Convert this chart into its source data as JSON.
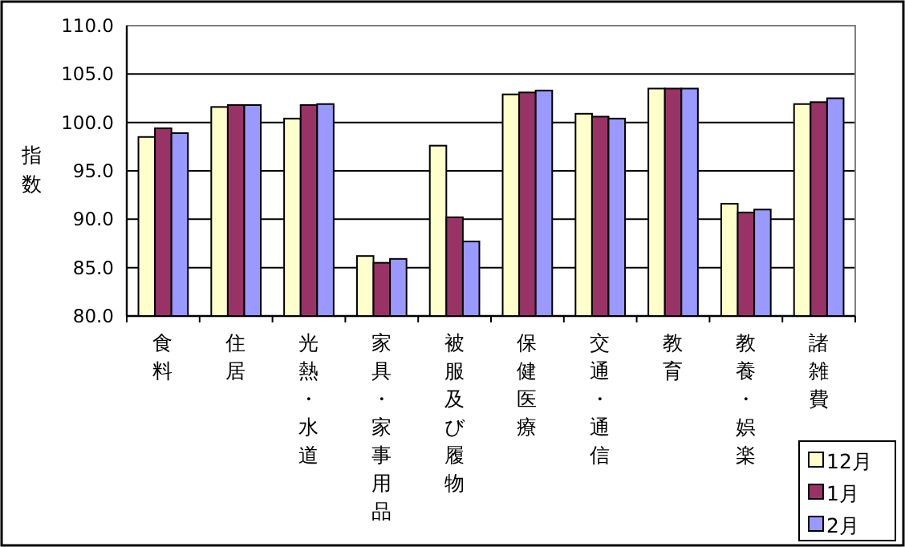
{
  "chart_data": {
    "type": "bar",
    "ylabel": "指数",
    "categories": [
      "食料",
      "住居",
      "光熱・水道",
      "家具・家事用品",
      "被服及び履物",
      "保健医療",
      "交通・通信",
      "教育",
      "教養・娯楽",
      "諸雑費"
    ],
    "series": [
      {
        "name": "12月",
        "color": "#ffffcc",
        "values": [
          98.5,
          101.6,
          100.4,
          86.2,
          97.6,
          102.9,
          100.9,
          103.5,
          91.6,
          101.9
        ]
      },
      {
        "name": "1月",
        "color": "#993366",
        "values": [
          99.4,
          101.8,
          101.8,
          85.5,
          90.2,
          103.1,
          100.6,
          103.5,
          90.7,
          102.1
        ]
      },
      {
        "name": "2月",
        "color": "#9999ff",
        "values": [
          98.9,
          101.8,
          101.9,
          85.9,
          87.7,
          103.3,
          100.4,
          103.5,
          91.0,
          102.5
        ]
      }
    ],
    "ylim": [
      80,
      110
    ],
    "yticks": [
      {
        "value": 80,
        "label": "80.0"
      },
      {
        "value": 85,
        "label": "85.0"
      },
      {
        "value": 90,
        "label": "90.0"
      },
      {
        "value": 95,
        "label": "95.0"
      },
      {
        "value": 100,
        "label": "100.0"
      },
      {
        "value": 105,
        "label": "105.0"
      },
      {
        "value": 110,
        "label": "110.0"
      }
    ],
    "grid": "y",
    "legend": "bottom right"
  }
}
